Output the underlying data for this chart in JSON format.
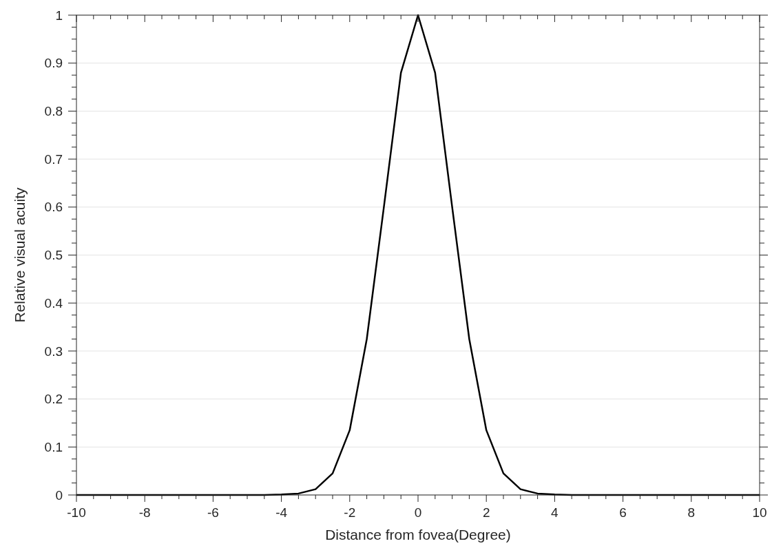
{
  "chart_data": {
    "type": "line",
    "xlabel": "Distance from fovea(Degree)",
    "ylabel": "Relative visual acuity",
    "x": [
      -10,
      -4.5,
      -4,
      -3.5,
      -3,
      -2.5,
      -2,
      -1.5,
      -1,
      -0.5,
      0,
      0.5,
      1,
      1.5,
      2,
      2.5,
      3,
      3.5,
      4,
      4.5,
      10
    ],
    "series": [
      {
        "color": "#000000",
        "values": [
          0,
          0,
          0.001,
          0.003,
          0.012,
          0.045,
          0.135,
          0.325,
          0.6,
          0.88,
          1,
          0.88,
          0.6,
          0.325,
          0.135,
          0.045,
          0.012,
          0.003,
          0.001,
          0,
          0
        ]
      }
    ],
    "xlim": [
      -10,
      10
    ],
    "xticks": [
      -10,
      {
        "value": -9.5,
        "label": null
      },
      {
        "value": -9,
        "label": null
      },
      {
        "value": -8.5,
        "label": null
      },
      -8,
      {
        "value": -7.5,
        "label": null
      },
      {
        "value": -7,
        "label": null
      },
      {
        "value": -6.5,
        "label": null
      },
      -6,
      {
        "value": -5.5,
        "label": null
      },
      {
        "value": -5,
        "label": null
      },
      {
        "value": -4.5,
        "label": null
      },
      -4,
      {
        "value": -3.5,
        "label": null
      },
      {
        "value": -3,
        "label": null
      },
      {
        "value": -2.5,
        "label": null
      },
      -2,
      {
        "value": -1.5,
        "label": null
      },
      {
        "value": -1,
        "label": null
      },
      {
        "value": -0.5,
        "label": null
      },
      0,
      {
        "value": 0.5,
        "label": null
      },
      {
        "value": 1,
        "label": null
      },
      {
        "value": 1.5,
        "label": null
      },
      2,
      {
        "value": 2.5,
        "label": null
      },
      {
        "value": 3,
        "label": null
      },
      {
        "value": 3.5,
        "label": null
      },
      4,
      {
        "value": 4.5,
        "label": null
      },
      {
        "value": 5,
        "label": null
      },
      {
        "value": 5.5,
        "label": null
      },
      6,
      {
        "value": 6.5,
        "label": null
      },
      {
        "value": 7,
        "label": null
      },
      {
        "value": 7.5,
        "label": null
      },
      8,
      {
        "value": 8.5,
        "label": null
      },
      {
        "value": 9,
        "label": null
      },
      {
        "value": 9.5,
        "label": null
      },
      10
    ],
    "ylim": [
      0,
      1
    ],
    "yticks": [
      0,
      {
        "value": 0.025,
        "label": null
      },
      {
        "value": 0.05,
        "label": null
      },
      {
        "value": 0.075,
        "label": null
      },
      0.1,
      {
        "value": 0.125,
        "label": null
      },
      {
        "value": 0.15,
        "label": null
      },
      {
        "value": 0.175,
        "label": null
      },
      0.2,
      {
        "value": 0.225,
        "label": null
      },
      {
        "value": 0.25,
        "label": null
      },
      {
        "value": 0.275,
        "label": null
      },
      0.3,
      {
        "value": 0.325,
        "label": null
      },
      {
        "value": 0.35,
        "label": null
      },
      {
        "value": 0.375,
        "label": null
      },
      0.4,
      {
        "value": 0.425,
        "label": null
      },
      {
        "value": 0.45,
        "label": null
      },
      {
        "value": 0.475,
        "label": null
      },
      0.5,
      {
        "value": 0.525,
        "label": null
      },
      {
        "value": 0.55,
        "label": null
      },
      {
        "value": 0.575,
        "label": null
      },
      0.6,
      {
        "value": 0.625,
        "label": null
      },
      {
        "value": 0.65,
        "label": null
      },
      {
        "value": 0.675,
        "label": null
      },
      0.7,
      {
        "value": 0.725,
        "label": null
      },
      {
        "value": 0.75,
        "label": null
      },
      {
        "value": 0.775,
        "label": null
      },
      0.8,
      {
        "value": 0.825,
        "label": null
      },
      {
        "value": 0.85,
        "label": null
      },
      {
        "value": 0.875,
        "label": null
      },
      0.9,
      {
        "value": 0.925,
        "label": null
      },
      {
        "value": 0.95,
        "label": null
      },
      {
        "value": 0.975,
        "label": null
      },
      1
    ],
    "grid": "y",
    "marker": "none",
    "line_style": "solid"
  }
}
